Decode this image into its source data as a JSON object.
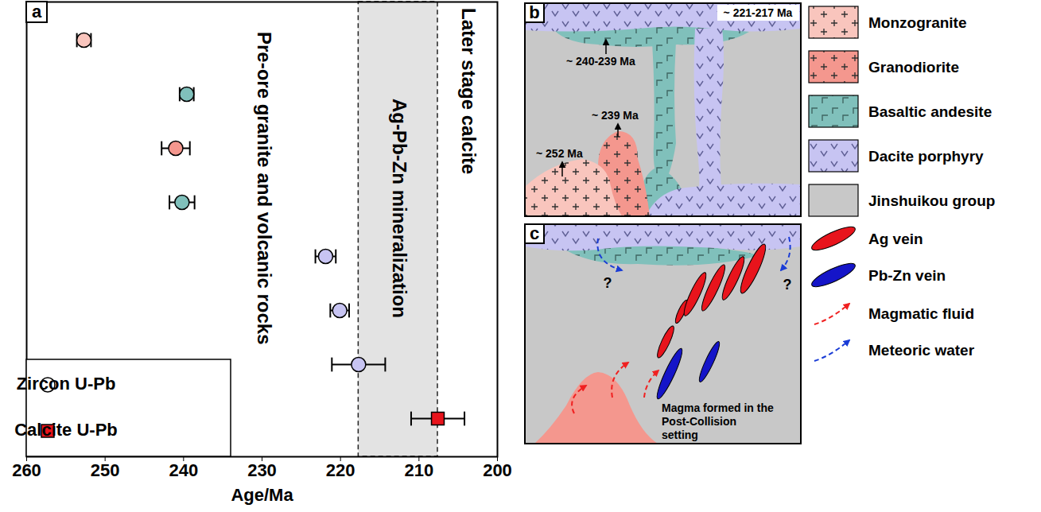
{
  "chart_data": {
    "type": "scatter",
    "label": "a",
    "xlabel": "Age/Ma",
    "xlim": [
      260,
      200
    ],
    "xticks": [
      260,
      250,
      240,
      230,
      220,
      210,
      200
    ],
    "legend": "bottom-left",
    "series": [
      {
        "name": "Zircon U-Pb",
        "marker": "circle",
        "values": [
          252.7,
          239.6,
          241.0,
          240.2,
          221.9,
          220.1,
          217.7
        ],
        "errors": [
          0.9,
          0.9,
          1.8,
          1.6,
          1.3,
          1.2,
          3.4
        ],
        "colors": [
          "#f9c5bd",
          "#80c0bb",
          "#f4978e",
          "#80c0bb",
          "#c7c4f2",
          "#c7c4f2",
          "#c7c4f2"
        ]
      },
      {
        "name": "Calcite U-Pb",
        "marker": "square",
        "color": "#e8141c",
        "values": [
          207.6
        ],
        "errors": [
          3.4
        ]
      }
    ],
    "bands": [
      {
        "label": "Ag-Pb-Zn mineralization",
        "from": 217.7,
        "to": 207.6
      }
    ],
    "annotations": [
      "Pre-ore granite and volcanic rocks",
      "Later stage calcite"
    ]
  },
  "diagram": {
    "panel_b": {
      "label": "b",
      "ages": [
        "~ 221-217 Ma",
        "~ 240-239 Ma",
        "~ 239 Ma",
        "~ 252 Ma"
      ]
    },
    "panel_c": {
      "label": "c",
      "texts": [
        "?",
        "?",
        "Magma formed in the Post-Collision setting"
      ]
    },
    "legend": [
      {
        "label": "Monzogranite",
        "type": "rock",
        "color": "#f9c5bd"
      },
      {
        "label": "Granodiorite",
        "type": "rock",
        "color": "#f4978e"
      },
      {
        "label": "Basaltic andesite",
        "type": "rock",
        "color": "#80c0bb"
      },
      {
        "label": "Dacite porphyry",
        "type": "rock",
        "color": "#c7c4f2"
      },
      {
        "label": "Jinshuikou group",
        "type": "rock",
        "color": "#c8c8c8"
      },
      {
        "label": "Ag  vein",
        "type": "vein",
        "color": "#e8141c"
      },
      {
        "label": "Pb-Zn vein",
        "type": "vein",
        "color": "#1515c8"
      },
      {
        "label": "Magmatic fluid",
        "type": "fluid",
        "color": "#f02020"
      },
      {
        "label": "Meteoric water",
        "type": "fluid",
        "color": "#1a3cd6"
      }
    ]
  }
}
